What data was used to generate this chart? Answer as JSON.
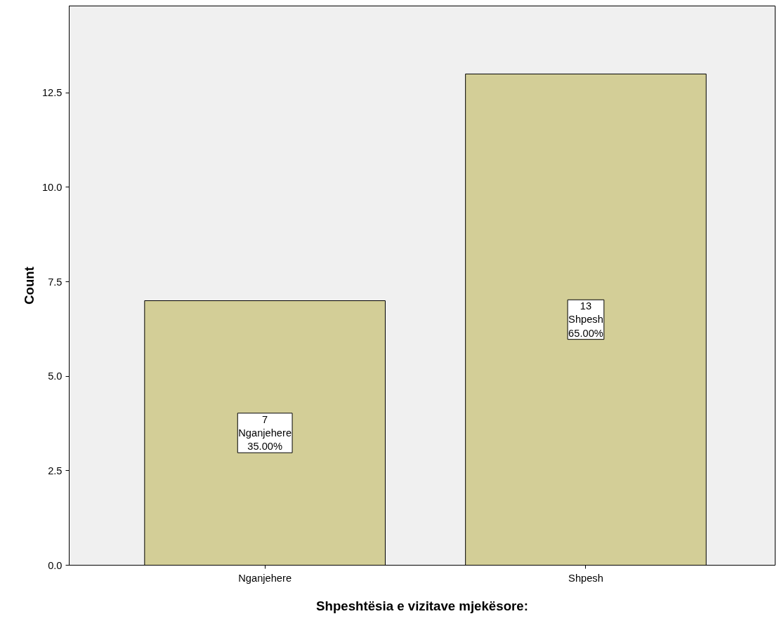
{
  "chart_data": {
    "type": "bar",
    "xlabel": "Shpeshtësia e vizitave mjekësore:",
    "ylabel": "Count",
    "categories": [
      "Nganjehere",
      "Shpesh"
    ],
    "values": [
      7,
      13
    ],
    "color": "#d3ce97",
    "value_labels": [
      "7\nNganjehere\n35.00%",
      "13\nShpesh\n65.00%"
    ],
    "ylim": [
      0,
      14.8
    ],
    "yticks": [
      {
        "value": 0,
        "label": "0.0"
      },
      {
        "value": 2.5,
        "label": "2.5"
      },
      {
        "value": 5,
        "label": "5.0"
      },
      {
        "value": 7.5,
        "label": "7.5"
      },
      {
        "value": 10,
        "label": "10.0"
      },
      {
        "value": 12.5,
        "label": "12.5"
      }
    ]
  }
}
